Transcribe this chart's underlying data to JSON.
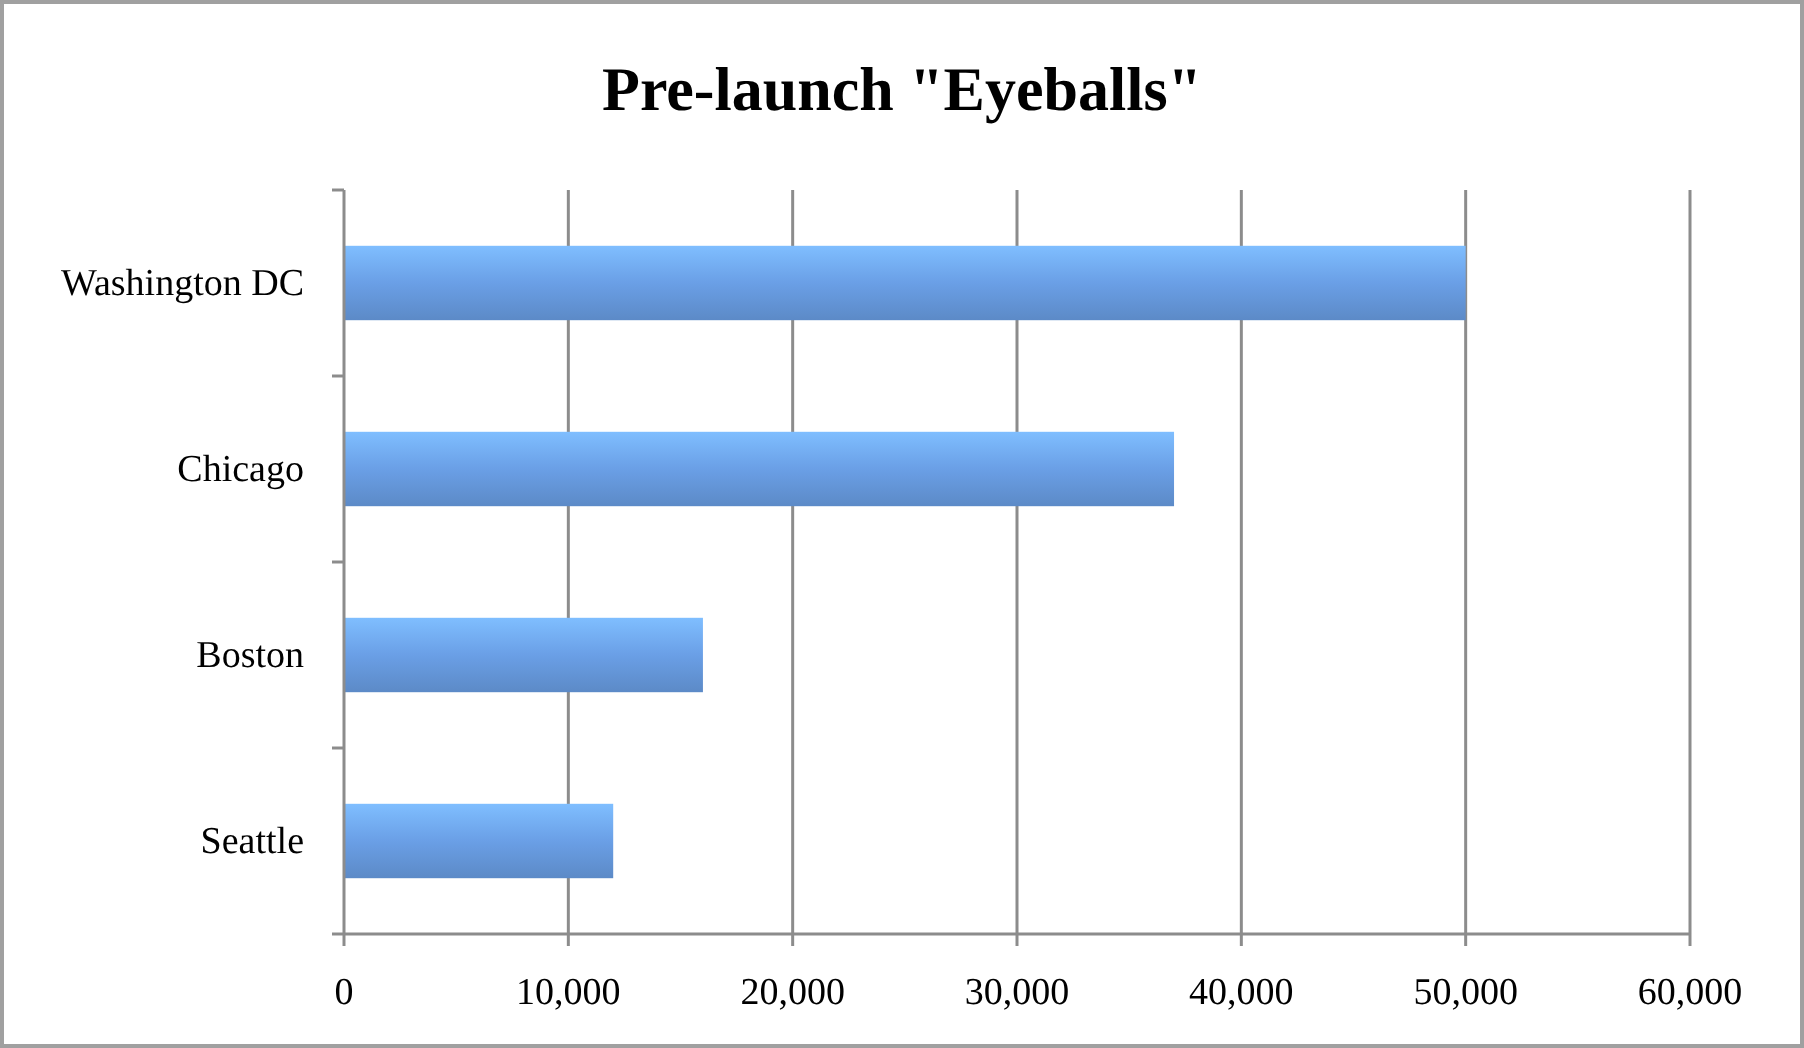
{
  "chart_data": {
    "type": "bar",
    "orientation": "horizontal",
    "title": "Pre-launch \"Eyeballs\"",
    "categories": [
      "Washington DC",
      "Chicago",
      "Boston",
      "Seattle"
    ],
    "values": [
      50000,
      37000,
      16000,
      12000
    ],
    "color": "#6a9fe6",
    "xlim": [
      0,
      60000
    ],
    "xticks": [
      {
        "value": 0,
        "label": "0"
      },
      {
        "value": 10000,
        "label": "10,000"
      },
      {
        "value": 20000,
        "label": "20,000"
      },
      {
        "value": 30000,
        "label": "30,000"
      },
      {
        "value": 40000,
        "label": "40,000"
      },
      {
        "value": 50000,
        "label": "50,000"
      },
      {
        "value": 60000,
        "label": "60,000"
      }
    ],
    "grid": "x"
  }
}
